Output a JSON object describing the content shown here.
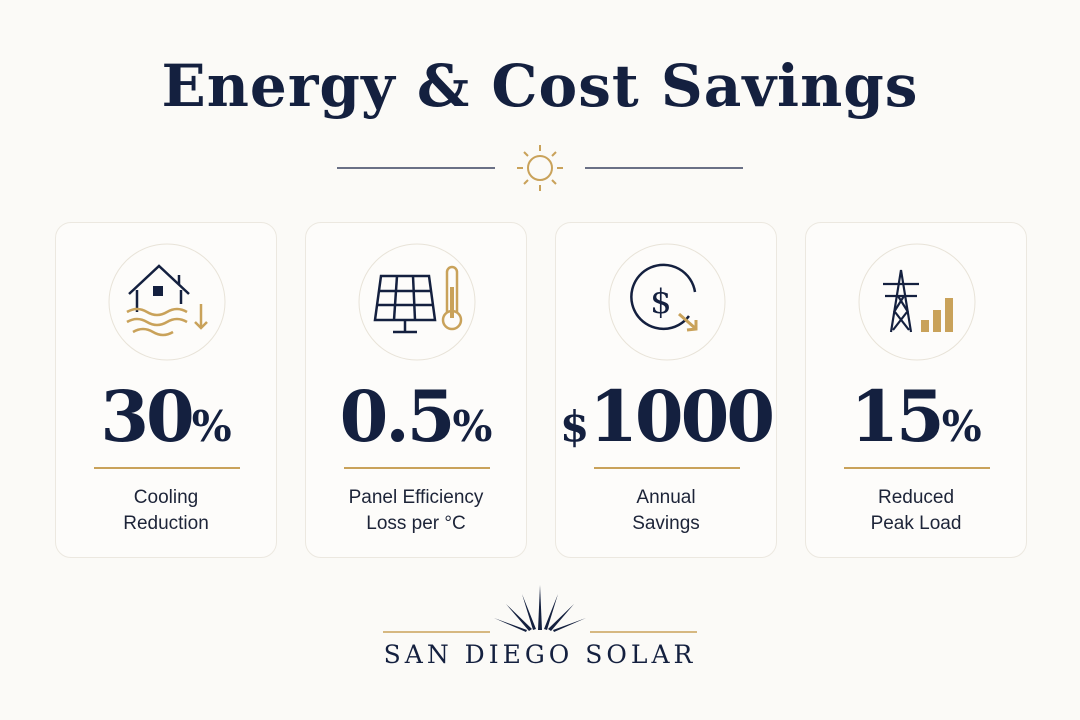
{
  "title": "Energy & Cost Savings",
  "cards": [
    {
      "value": 30,
      "unit": "%",
      "label": [
        "Cooling",
        "Reduction"
      ]
    },
    {
      "value": 0.5,
      "unit": "%",
      "label": [
        "Panel Efficiency",
        "Loss per °C"
      ]
    },
    {
      "prefix": "$",
      "value": 1000,
      "label": [
        "Annual",
        "Savings"
      ]
    },
    {
      "value": 15,
      "unit": "%",
      "label": [
        "Reduced",
        "Peak Load"
      ]
    }
  ],
  "brand": "SAN DIEGO SOLAR"
}
